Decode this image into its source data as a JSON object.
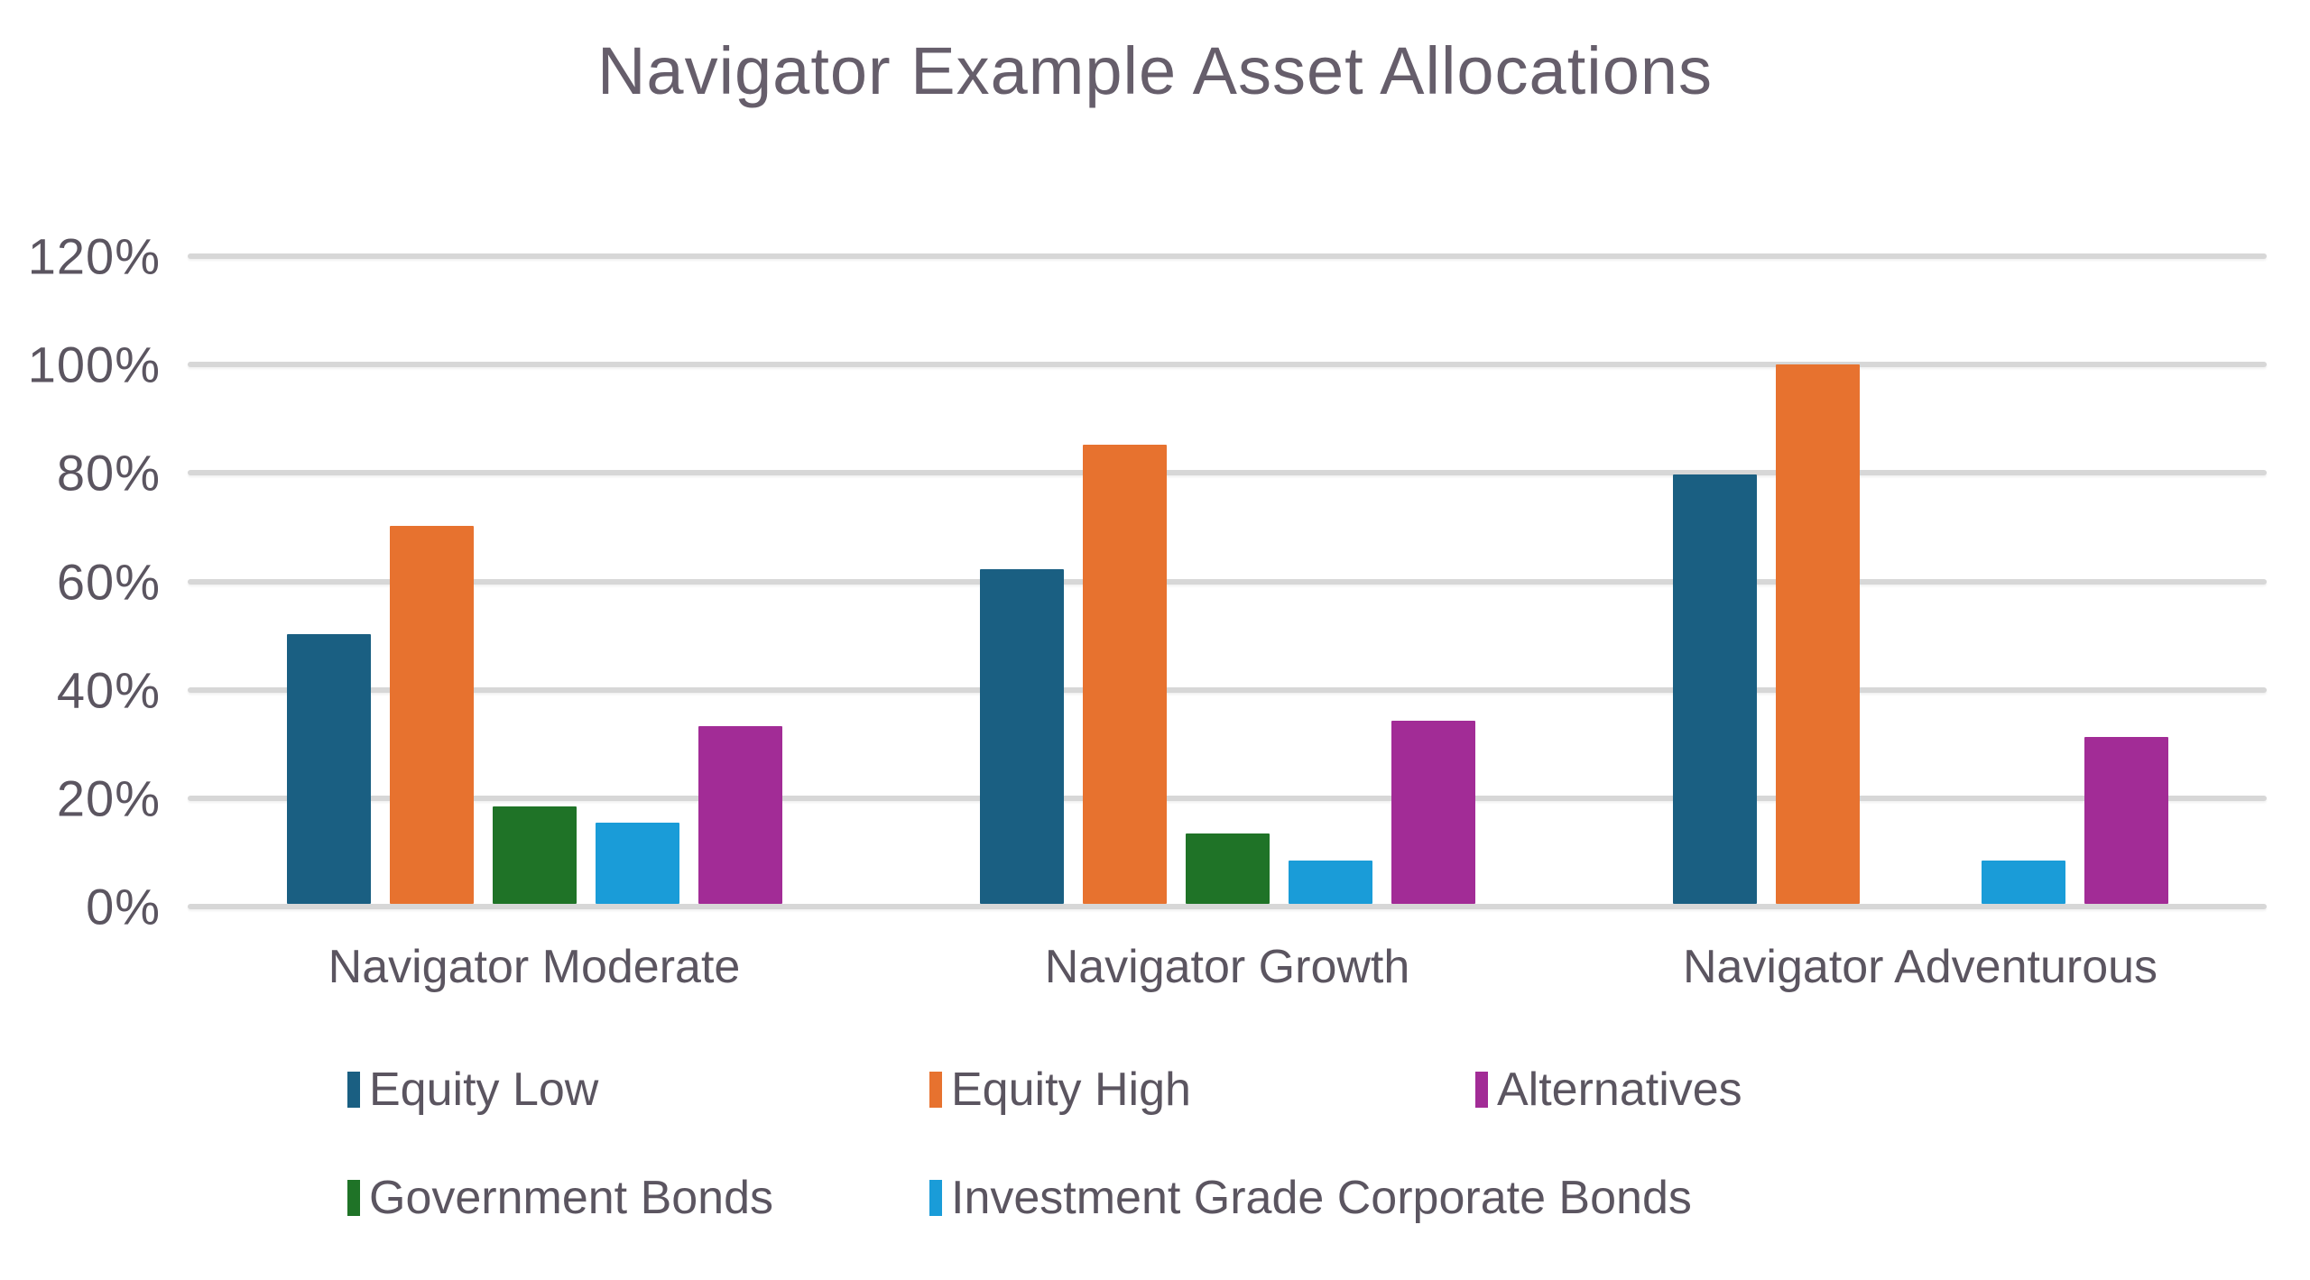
{
  "chart_data": {
    "type": "bar",
    "title": "Navigator Example Asset Allocations",
    "categories": [
      "Navigator Moderate",
      "Navigator Growth",
      "Navigator Adventurous"
    ],
    "series": [
      {
        "name": "Equity Low",
        "color": "#1A5F82",
        "values": [
          50,
          62,
          79.5
        ]
      },
      {
        "name": "Equity High",
        "color": "#E7722F",
        "values": [
          70,
          85,
          100
        ]
      },
      {
        "name": "Government Bonds",
        "color": "#1F7327",
        "values": [
          18,
          13,
          0
        ]
      },
      {
        "name": "Investment Grade Corporate Bonds",
        "color": "#1A9CD8",
        "values": [
          15,
          8,
          8
        ]
      },
      {
        "name": "Alternatives",
        "color": "#A22C96",
        "values": [
          33,
          34,
          31
        ]
      }
    ],
    "xlabel": "",
    "ylabel": "",
    "y_ticks": [
      "0%",
      "20%",
      "40%",
      "60%",
      "80%",
      "100%",
      "120%"
    ],
    "ylim": [
      0,
      120
    ],
    "grid": true,
    "gridline_color": "#D7D7D7",
    "text_color": "#5B5560",
    "title_color": "#665E6B",
    "legend_position": "bottom",
    "legend_rows": [
      [
        "Equity Low",
        "Equity High",
        "Alternatives"
      ],
      [
        "Government Bonds",
        "Investment Grade Corporate Bonds"
      ]
    ]
  }
}
